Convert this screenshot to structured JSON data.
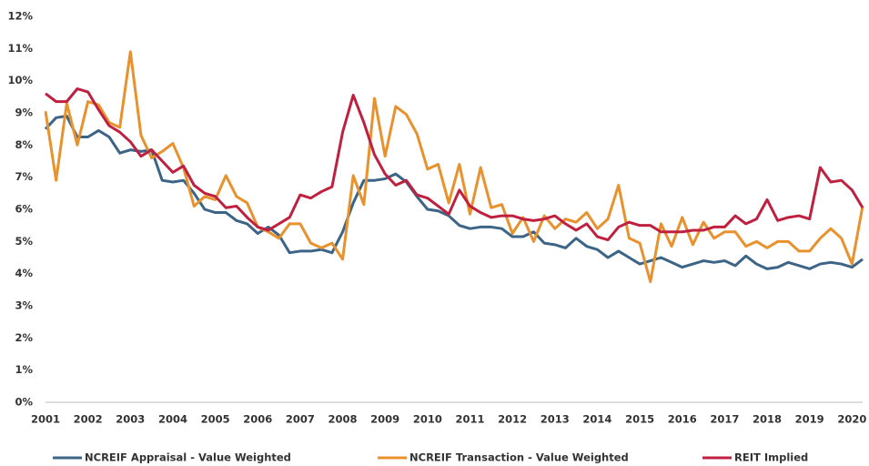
{
  "chart_data": {
    "type": "line",
    "categories": [
      "2001",
      null,
      null,
      null,
      "2002",
      null,
      null,
      null,
      "2003",
      null,
      null,
      null,
      "2004",
      null,
      null,
      null,
      "2005",
      null,
      null,
      null,
      "2006",
      null,
      null,
      null,
      "2007",
      null,
      null,
      null,
      "2008",
      null,
      null,
      null,
      "2009",
      null,
      null,
      null,
      "2010",
      null,
      null,
      null,
      "2011",
      null,
      null,
      null,
      "2012",
      null,
      null,
      null,
      "2013",
      null,
      null,
      null,
      "2014",
      null,
      null,
      null,
      "2015",
      null,
      null,
      null,
      "2016",
      null,
      null,
      null,
      "2017",
      null,
      null,
      null,
      "2018",
      null,
      null,
      null,
      "2019",
      null,
      null,
      null,
      "2020",
      null
    ],
    "series": [
      {
        "name": "NCREIF Appraisal - Value Weighted",
        "color": "#3b6487",
        "values": [
          8.5,
          8.85,
          8.9,
          8.25,
          8.25,
          8.45,
          8.25,
          7.75,
          7.85,
          7.8,
          7.85,
          6.9,
          6.85,
          6.9,
          6.5,
          6.0,
          5.9,
          5.9,
          5.65,
          5.55,
          5.25,
          5.45,
          5.2,
          4.65,
          4.7,
          4.7,
          4.75,
          4.65,
          5.3,
          6.2,
          6.9,
          6.9,
          6.95,
          7.1,
          6.85,
          6.4,
          6.0,
          5.95,
          5.8,
          5.5,
          5.4,
          5.45,
          5.45,
          5.4,
          5.15,
          5.15,
          5.3,
          4.95,
          4.9,
          4.8,
          5.1,
          4.85,
          4.75,
          4.5,
          4.7,
          4.5,
          4.3,
          4.4,
          4.5,
          4.35,
          4.2,
          4.3,
          4.4,
          4.35,
          4.4,
          4.25,
          4.55,
          4.3,
          4.15,
          4.2,
          4.35,
          4.25,
          4.15,
          4.3,
          4.35,
          4.3,
          4.2,
          4.45
        ]
      },
      {
        "name": "NCREIF Transaction - Value Weighted",
        "color": "#e8912d",
        "values": [
          9.05,
          6.9,
          9.3,
          8.0,
          9.35,
          9.25,
          8.7,
          8.55,
          10.9,
          8.3,
          7.6,
          7.8,
          8.05,
          7.3,
          6.1,
          6.4,
          6.3,
          7.05,
          6.4,
          6.2,
          5.45,
          5.3,
          5.1,
          5.55,
          5.55,
          4.95,
          4.8,
          4.95,
          4.45,
          7.05,
          6.15,
          9.45,
          7.65,
          9.2,
          8.95,
          8.35,
          7.25,
          7.4,
          6.2,
          7.4,
          5.85,
          7.3,
          6.05,
          6.15,
          5.25,
          5.75,
          5.0,
          5.8,
          5.4,
          5.7,
          5.6,
          5.9,
          5.4,
          5.7,
          6.75,
          5.1,
          4.95,
          3.75,
          5.55,
          4.85,
          5.75,
          4.9,
          5.6,
          5.1,
          5.3,
          5.3,
          4.85,
          5.0,
          4.8,
          5.0,
          5.0,
          4.7,
          4.7,
          5.1,
          5.4,
          5.1,
          4.3,
          6.1
        ]
      },
      {
        "name": "REIT Implied",
        "color": "#c0203f",
        "values": [
          9.6,
          9.35,
          9.35,
          9.75,
          9.65,
          9.1,
          8.6,
          8.4,
          8.1,
          7.65,
          7.85,
          7.5,
          7.15,
          7.35,
          6.75,
          6.5,
          6.4,
          6.05,
          6.1,
          5.75,
          5.45,
          5.35,
          5.55,
          5.75,
          6.45,
          6.35,
          6.55,
          6.7,
          8.4,
          9.55,
          8.7,
          7.7,
          7.1,
          6.75,
          6.9,
          6.45,
          6.35,
          6.1,
          5.85,
          6.6,
          6.1,
          5.9,
          5.75,
          5.8,
          5.8,
          5.7,
          5.65,
          5.7,
          5.8,
          5.55,
          5.35,
          5.55,
          5.15,
          5.05,
          5.45,
          5.6,
          5.5,
          5.5,
          5.3,
          5.3,
          5.3,
          5.35,
          5.35,
          5.45,
          5.45,
          5.8,
          5.55,
          5.7,
          6.3,
          5.65,
          5.75,
          5.8,
          5.7,
          7.3,
          6.85,
          6.9,
          6.6,
          6.05
        ]
      }
    ],
    "ylim": [
      0,
      12
    ],
    "yticks": [
      {
        "value": 0,
        "label": "0%"
      },
      {
        "value": 1,
        "label": "1%"
      },
      {
        "value": 2,
        "label": "2%"
      },
      {
        "value": 3,
        "label": "3%"
      },
      {
        "value": 4,
        "label": "4%"
      },
      {
        "value": 5,
        "label": "5%"
      },
      {
        "value": 6,
        "label": "6%"
      },
      {
        "value": 7,
        "label": "7%"
      },
      {
        "value": 8,
        "label": "8%"
      },
      {
        "value": 9,
        "label": "9%"
      },
      {
        "value": 10,
        "label": "10%"
      },
      {
        "value": 11,
        "label": "11%"
      },
      {
        "value": 12,
        "label": "12%"
      }
    ],
    "legend": "bottom"
  }
}
